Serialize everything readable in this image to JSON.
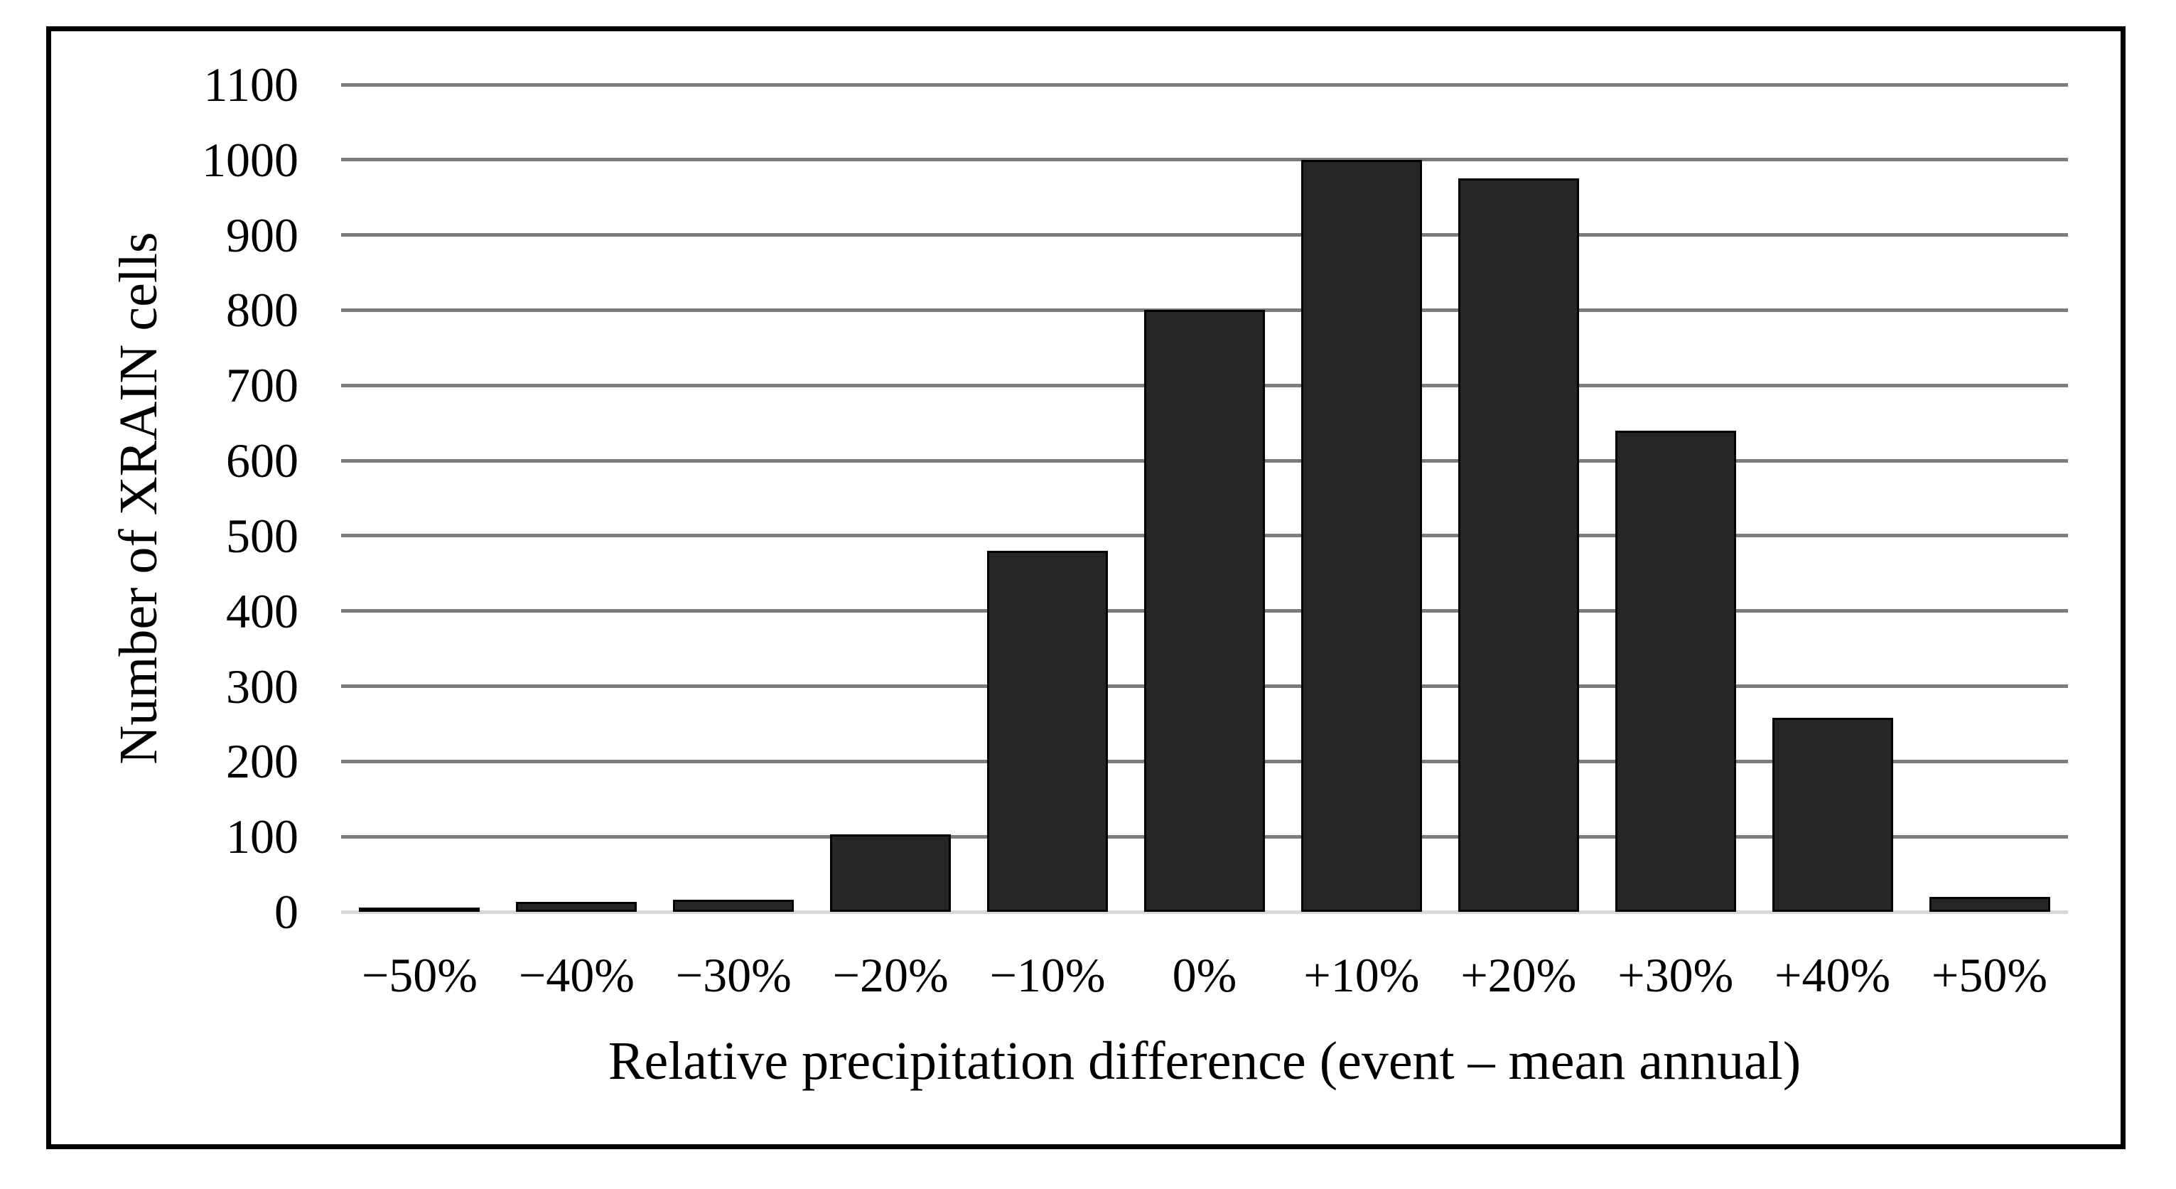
{
  "chart_data": {
    "type": "bar",
    "categories": [
      "−50%",
      "−40%",
      "−30%",
      "−20%",
      "−10%",
      "0%",
      "+10%",
      "+20%",
      "+30%",
      "+40%",
      "+50%"
    ],
    "values": [
      5,
      13,
      16,
      103,
      480,
      800,
      1000,
      975,
      640,
      258,
      20
    ],
    "title": "",
    "xlabel": "Relative precipitation difference (event – mean annual)",
    "ylabel": "Number of XRAIN cells",
    "ylim": [
      0,
      1100
    ],
    "yticks": [
      0,
      100,
      200,
      300,
      400,
      500,
      600,
      700,
      800,
      900,
      1000,
      1100
    ],
    "grid": "horizontal-only",
    "legend": "none",
    "colors": {
      "bar_fill": "#262626",
      "bar_border": "#000000",
      "gridline": "#7c7c7c",
      "baseline": "#d9d9d9",
      "frame": "#000000",
      "background": "#ffffff",
      "text": "#000000"
    }
  }
}
